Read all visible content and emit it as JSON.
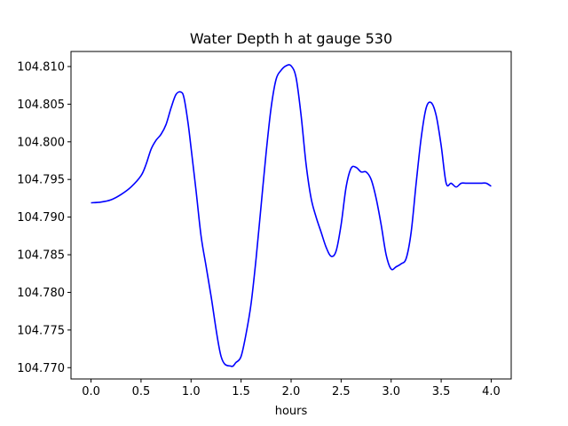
{
  "chart_data": {
    "type": "line",
    "title": "Water Depth h at gauge 530",
    "xlabel": "hours",
    "ylabel": "",
    "xlim": [
      -0.2,
      4.2
    ],
    "ylim": [
      104.7685,
      104.812
    ],
    "x_ticks": [
      "0.0",
      "0.5",
      "1.0",
      "1.5",
      "2.0",
      "2.5",
      "3.0",
      "3.5",
      "4.0"
    ],
    "y_ticks": [
      "104.770",
      "104.775",
      "104.780",
      "104.785",
      "104.790",
      "104.795",
      "104.800",
      "104.805",
      "104.810"
    ],
    "grid": false,
    "series": [
      {
        "color": "#0000ff",
        "x": [
          0.0,
          0.1,
          0.2,
          0.3,
          0.4,
          0.5,
          0.55,
          0.6,
          0.65,
          0.7,
          0.75,
          0.8,
          0.85,
          0.9,
          0.93,
          0.97,
          1.0,
          1.05,
          1.1,
          1.15,
          1.2,
          1.3,
          1.4,
          1.45,
          1.5,
          1.55,
          1.6,
          1.65,
          1.7,
          1.75,
          1.8,
          1.85,
          1.9,
          1.95,
          2.0,
          2.05,
          2.1,
          2.15,
          2.2,
          2.25,
          2.3,
          2.35,
          2.4,
          2.45,
          2.5,
          2.55,
          2.6,
          2.65,
          2.7,
          2.75,
          2.8,
          2.85,
          2.9,
          2.95,
          3.0,
          3.05,
          3.1,
          3.15,
          3.2,
          3.25,
          3.3,
          3.35,
          3.4,
          3.45,
          3.5,
          3.55,
          3.6,
          3.65,
          3.7,
          3.75,
          3.8,
          3.85,
          3.9,
          3.95,
          4.0
        ],
        "y": [
          104.7919,
          104.792,
          104.7923,
          104.793,
          104.794,
          104.7955,
          104.797,
          104.799,
          104.8002,
          104.801,
          104.8023,
          104.8045,
          104.8063,
          104.8066,
          104.8058,
          104.8025,
          104.7992,
          104.7935,
          104.7875,
          104.7835,
          104.7795,
          104.7715,
          104.7702,
          104.7707,
          104.7715,
          104.7745,
          104.7785,
          104.7845,
          104.7915,
          104.7985,
          104.8045,
          104.8083,
          104.8095,
          104.8101,
          104.8101,
          104.8085,
          104.8035,
          104.797,
          104.7925,
          104.79,
          104.788,
          104.786,
          104.7848,
          104.7855,
          104.789,
          104.794,
          104.7965,
          104.7966,
          104.796,
          104.796,
          104.795,
          104.7925,
          104.789,
          104.785,
          104.7831,
          104.7834,
          104.7838,
          104.7845,
          104.788,
          104.7945,
          104.8005,
          104.8045,
          104.8052,
          104.8035,
          104.7995,
          104.7945,
          104.7945,
          104.794,
          104.7945,
          104.7945,
          104.7945,
          104.7945,
          104.7945,
          104.7945,
          104.7941
        ]
      }
    ]
  }
}
